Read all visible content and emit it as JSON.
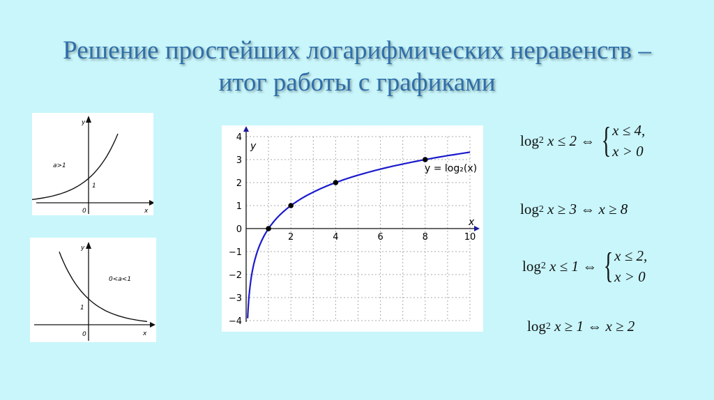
{
  "title": {
    "line1": "Решение простейших логарифмических неравенств –",
    "line2": "итог работы с графиками"
  },
  "colors": {
    "background": "#c8f6fb",
    "title": "#2f6ea8",
    "curve": "#1a1acc"
  },
  "chart_data": [
    {
      "type": "line",
      "function": "y = a^x",
      "annotation": "a>1",
      "series_points": {
        "x": [
          -3,
          -2,
          -1,
          0,
          1,
          1.5
        ],
        "y": [
          0.125,
          0.25,
          0.5,
          1,
          2,
          2.83
        ]
      },
      "tick_labels": {
        "origin": "0",
        "y_intercept": "1"
      },
      "xlabel": "x",
      "ylabel": "y"
    },
    {
      "type": "line",
      "function": "y = a^x",
      "annotation": "0<a<1",
      "series_points": {
        "x": [
          -1.5,
          -1,
          0,
          1,
          2,
          3
        ],
        "y": [
          2.83,
          2,
          1,
          0.5,
          0.25,
          0.125
        ]
      },
      "tick_labels": {
        "origin": "0",
        "y_intercept": "1"
      },
      "xlabel": "x",
      "ylabel": "y"
    },
    {
      "type": "line",
      "function": "log2(x)",
      "xlabel": "x",
      "ylabel": "y",
      "xlim": [
        0,
        10
      ],
      "ylim": [
        -4,
        4
      ],
      "grid": true,
      "x_ticks": [
        "2",
        "4",
        "6",
        "8",
        "10"
      ],
      "y_ticks": [
        "−4",
        "−3",
        "−2",
        "−1",
        "0",
        "1",
        "2",
        "3",
        "4"
      ],
      "marked_points": {
        "x": [
          1,
          2,
          4,
          8
        ],
        "y": [
          0,
          1,
          2,
          3
        ]
      },
      "annotation": "y = log₂(x)"
    }
  ],
  "formulas": [
    {
      "lhs": "log",
      "base": "2",
      "rest": "x ≤ 2 ⇔",
      "system": [
        "x ≤ 4,",
        "x > 0"
      ]
    },
    {
      "lhs": "log",
      "base": "2",
      "rest": "x ≥ 3 ⇔ x ≥ 8"
    },
    {
      "lhs": "log",
      "base": "2",
      "rest": "x ≤ 1 ⇔",
      "system": [
        "x ≤ 2,",
        "x > 0"
      ]
    },
    {
      "lhs": "log",
      "base": "2",
      "rest": "x ≥ 1 ⇔ x ≥ 2"
    }
  ]
}
